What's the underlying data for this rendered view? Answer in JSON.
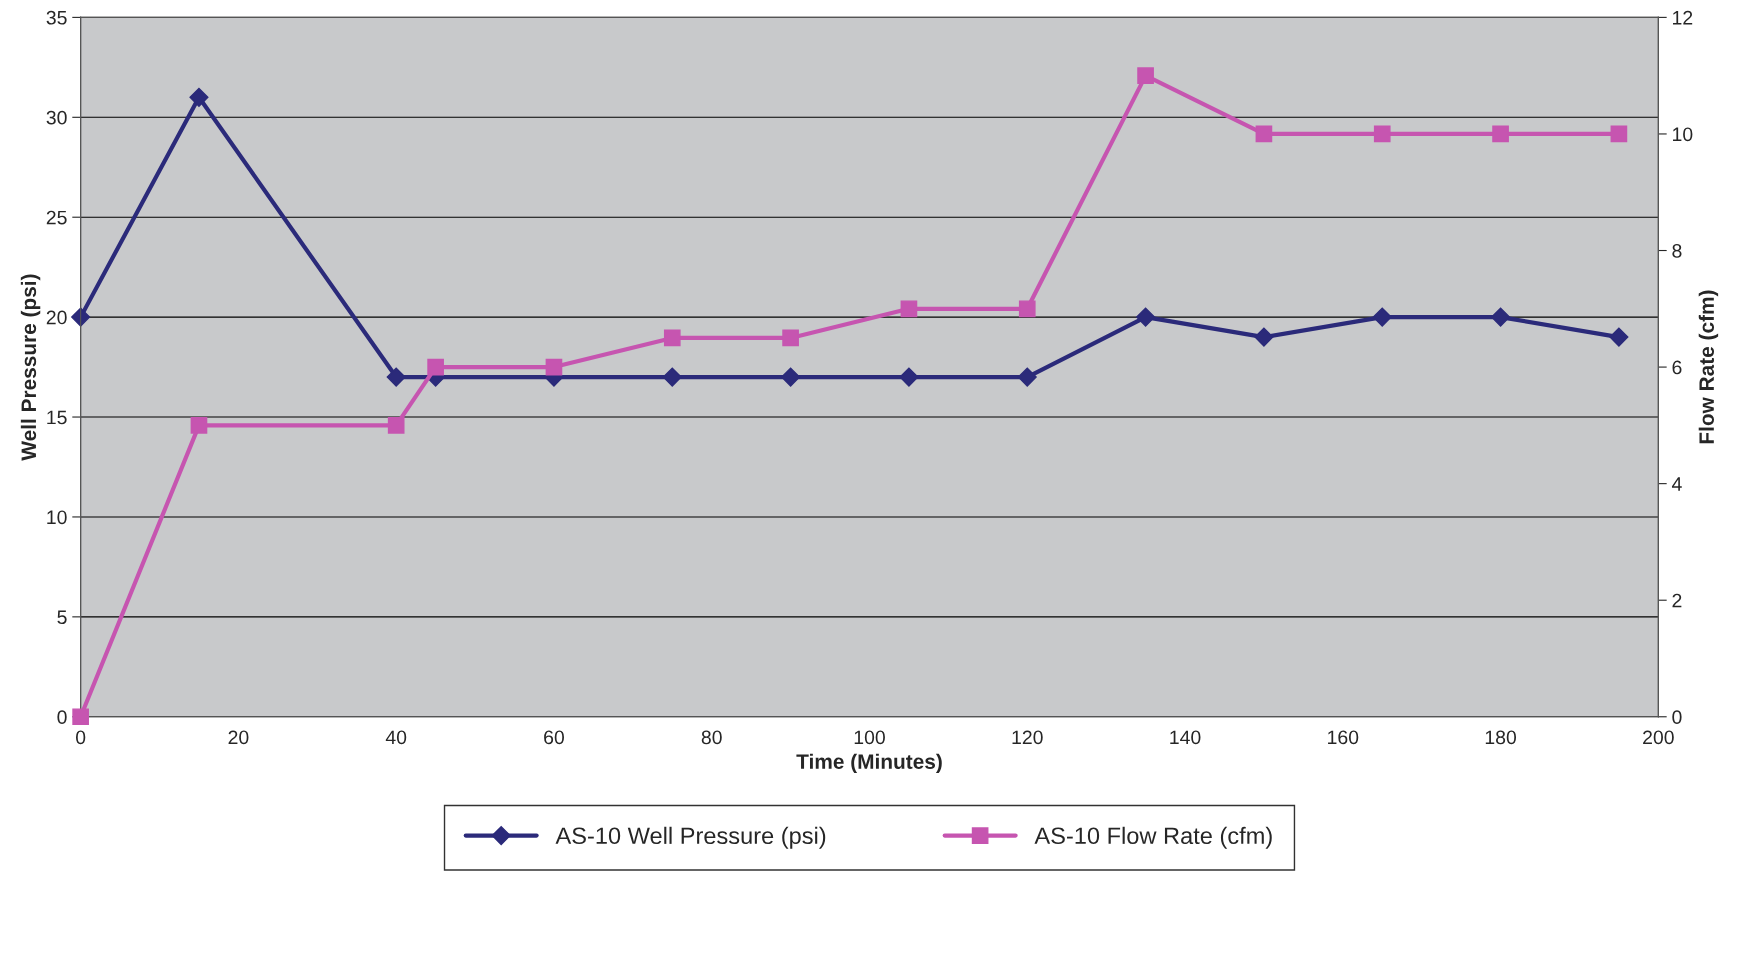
{
  "chart_data": {
    "type": "line",
    "xlabel": "Time (Minutes)",
    "ylabel": "Well Pressure (psi)",
    "y2label": "Flow Rate (cfm)",
    "x": [
      0,
      15,
      40,
      45,
      60,
      75,
      90,
      105,
      120,
      135,
      150,
      165,
      180,
      195
    ],
    "series": [
      {
        "name": "AS-10 Well Pressure (psi)",
        "color": "#2b2a7a",
        "marker": "diamond",
        "values": [
          20,
          31,
          17,
          17,
          17,
          17,
          17,
          17,
          17,
          20,
          19,
          20,
          20,
          19
        ]
      },
      {
        "name": "AS-10 Flow Rate (cfm)",
        "color": "#c655b0",
        "marker": "square",
        "axis": "y2",
        "values": [
          0,
          5,
          5,
          6,
          6,
          6.5,
          6.5,
          7,
          7,
          11,
          10,
          10,
          10,
          10
        ]
      }
    ],
    "xlim": [
      0,
      200
    ],
    "xticks": [
      0,
      20,
      40,
      60,
      80,
      100,
      120,
      140,
      160,
      180,
      200
    ],
    "ylim": [
      0,
      35
    ],
    "yticks": [
      0,
      5,
      10,
      15,
      20,
      25,
      30,
      35
    ],
    "y2lim": [
      0,
      12
    ],
    "y2ticks": [
      0,
      2,
      4,
      6,
      8,
      10,
      12
    ],
    "grid": "y",
    "legend": "bottom",
    "line_style": "solid"
  }
}
